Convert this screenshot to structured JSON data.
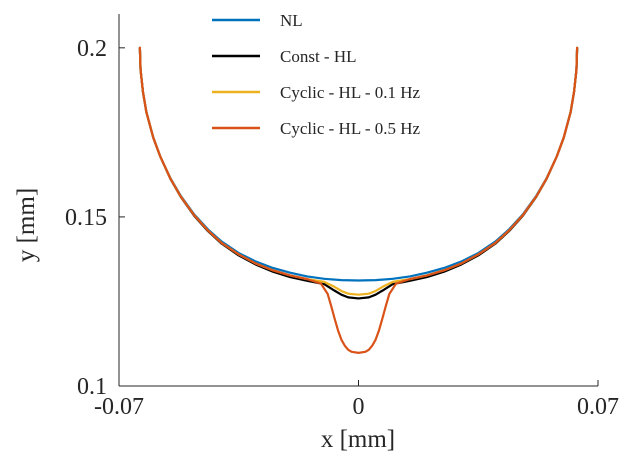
{
  "chart_data": {
    "type": "line",
    "title": "",
    "xlabel": "x [mm]",
    "ylabel": "y [mm]",
    "xlim": [
      -0.07,
      0.07
    ],
    "ylim": [
      0.1,
      0.21
    ],
    "xticks": [
      -0.07,
      0,
      0.07
    ],
    "xtick_labels": [
      "-0.07",
      "0",
      "0.07"
    ],
    "yticks": [
      0.1,
      0.15,
      0.2
    ],
    "ytick_labels": [
      "0.1",
      "0.15",
      "0.2"
    ],
    "grid": false,
    "legend_position": "top-center",
    "series": [
      {
        "name": "NL",
        "color": "#0072BD",
        "x": [
          -0.0639,
          -0.0637,
          -0.063,
          -0.062,
          -0.06,
          -0.058,
          -0.055,
          -0.052,
          -0.048,
          -0.044,
          -0.04,
          -0.035,
          -0.03,
          -0.025,
          -0.02,
          -0.015,
          -0.01,
          -0.005,
          0,
          0.005,
          0.01,
          0.015,
          0.02,
          0.025,
          0.03,
          0.035,
          0.04,
          0.044,
          0.048,
          0.052,
          0.055,
          0.058,
          0.06,
          0.062,
          0.063,
          0.0637,
          0.0639
        ],
        "y": [
          0.2,
          0.1935,
          0.187,
          0.181,
          0.1735,
          0.168,
          0.1615,
          0.1563,
          0.1507,
          0.1463,
          0.1427,
          0.1393,
          0.1368,
          0.1349,
          0.1335,
          0.1324,
          0.1317,
          0.1313,
          0.1312,
          0.1313,
          0.1317,
          0.1324,
          0.1335,
          0.1349,
          0.1368,
          0.1393,
          0.1427,
          0.1463,
          0.1507,
          0.1563,
          0.1615,
          0.168,
          0.1735,
          0.181,
          0.187,
          0.1935,
          0.2
        ]
      },
      {
        "name": "Const - HL",
        "color": "#000000",
        "x": [
          -0.0639,
          -0.0637,
          -0.063,
          -0.062,
          -0.06,
          -0.058,
          -0.055,
          -0.052,
          -0.048,
          -0.044,
          -0.04,
          -0.035,
          -0.03,
          -0.025,
          -0.02,
          -0.015,
          -0.01,
          -0.007,
          -0.005,
          -0.003,
          0,
          0.003,
          0.005,
          0.007,
          0.01,
          0.015,
          0.02,
          0.025,
          0.03,
          0.035,
          0.04,
          0.044,
          0.048,
          0.052,
          0.055,
          0.058,
          0.06,
          0.062,
          0.063,
          0.0637,
          0.0639
        ],
        "y": [
          0.2,
          0.1935,
          0.187,
          0.181,
          0.1735,
          0.168,
          0.1613,
          0.156,
          0.1503,
          0.1458,
          0.1421,
          0.1386,
          0.1359,
          0.1338,
          0.1322,
          0.1311,
          0.1301,
          0.1282,
          0.127,
          0.1262,
          0.1259,
          0.1262,
          0.127,
          0.1282,
          0.1301,
          0.1311,
          0.1322,
          0.1338,
          0.1359,
          0.1386,
          0.1421,
          0.1458,
          0.1503,
          0.156,
          0.1613,
          0.168,
          0.1735,
          0.181,
          0.187,
          0.1935,
          0.2
        ]
      },
      {
        "name": "Cyclic - HL - 0.1 Hz",
        "color": "#EDB120",
        "x": [
          -0.0639,
          -0.0637,
          -0.063,
          -0.062,
          -0.06,
          -0.058,
          -0.055,
          -0.052,
          -0.048,
          -0.044,
          -0.04,
          -0.035,
          -0.03,
          -0.025,
          -0.02,
          -0.015,
          -0.01,
          -0.007,
          -0.005,
          -0.003,
          0,
          0.003,
          0.005,
          0.007,
          0.01,
          0.015,
          0.02,
          0.025,
          0.03,
          0.035,
          0.04,
          0.044,
          0.048,
          0.052,
          0.055,
          0.058,
          0.06,
          0.062,
          0.063,
          0.0637,
          0.0639
        ],
        "y": [
          0.2,
          0.1935,
          0.187,
          0.181,
          0.1735,
          0.168,
          0.1614,
          0.1561,
          0.1505,
          0.146,
          0.1423,
          0.1389,
          0.1362,
          0.1342,
          0.1327,
          0.1316,
          0.1308,
          0.1293,
          0.1281,
          0.1273,
          0.127,
          0.1273,
          0.1281,
          0.1293,
          0.1308,
          0.1316,
          0.1327,
          0.1342,
          0.1362,
          0.1389,
          0.1423,
          0.146,
          0.1505,
          0.1561,
          0.1614,
          0.168,
          0.1735,
          0.181,
          0.187,
          0.1935,
          0.2
        ]
      },
      {
        "name": "Cyclic - HL - 0.5 Hz",
        "color": "#D95319",
        "x": [
          -0.0639,
          -0.0637,
          -0.063,
          -0.062,
          -0.06,
          -0.058,
          -0.055,
          -0.052,
          -0.048,
          -0.044,
          -0.04,
          -0.035,
          -0.03,
          -0.025,
          -0.02,
          -0.015,
          -0.011,
          -0.009,
          -0.008,
          -0.007,
          -0.006,
          -0.005,
          -0.004,
          -0.003,
          -0.002,
          0,
          0.002,
          0.003,
          0.004,
          0.005,
          0.006,
          0.007,
          0.008,
          0.009,
          0.011,
          0.015,
          0.02,
          0.025,
          0.03,
          0.035,
          0.04,
          0.044,
          0.048,
          0.052,
          0.055,
          0.058,
          0.06,
          0.062,
          0.063,
          0.0637,
          0.0639
        ],
        "y": [
          0.2,
          0.1935,
          0.187,
          0.181,
          0.1735,
          0.168,
          0.1614,
          0.1561,
          0.1505,
          0.146,
          0.1423,
          0.1389,
          0.1362,
          0.1342,
          0.1327,
          0.1316,
          0.1303,
          0.1272,
          0.1237,
          0.12,
          0.1165,
          0.1137,
          0.1119,
          0.1107,
          0.1101,
          0.1098,
          0.1101,
          0.1107,
          0.1119,
          0.1137,
          0.1165,
          0.12,
          0.1237,
          0.1272,
          0.1303,
          0.1316,
          0.1327,
          0.1342,
          0.1362,
          0.1389,
          0.1423,
          0.146,
          0.1505,
          0.1561,
          0.1614,
          0.168,
          0.1735,
          0.181,
          0.187,
          0.1935,
          0.2
        ]
      }
    ]
  }
}
